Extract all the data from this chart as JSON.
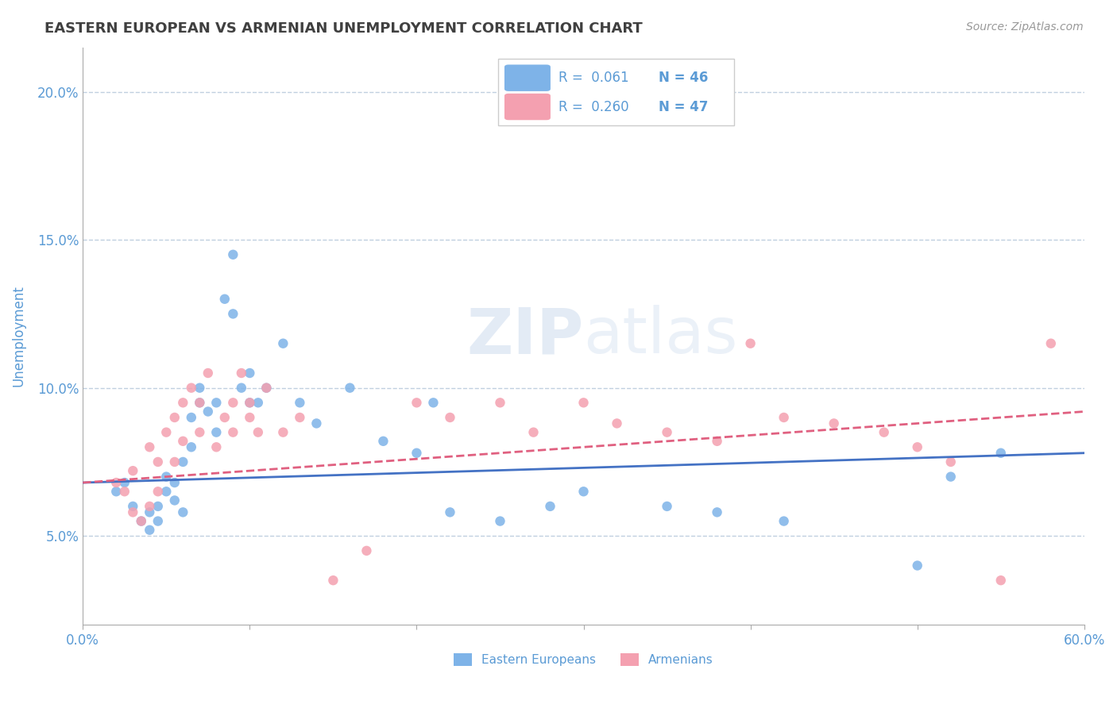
{
  "title": "EASTERN EUROPEAN VS ARMENIAN UNEMPLOYMENT CORRELATION CHART",
  "source_text": "Source: ZipAtlas.com",
  "xlabel": "",
  "ylabel": "Unemployment",
  "xlim": [
    0.0,
    0.6
  ],
  "ylim": [
    0.02,
    0.215
  ],
  "x_ticks": [
    0.0,
    0.1,
    0.2,
    0.3,
    0.4,
    0.5,
    0.6
  ],
  "x_tick_labels": [
    "0.0%",
    "",
    "",
    "",
    "",
    "",
    "60.0%"
  ],
  "y_ticks": [
    0.05,
    0.1,
    0.15,
    0.2
  ],
  "y_tick_labels": [
    "5.0%",
    "10.0%",
    "15.0%",
    "20.0%"
  ],
  "legend_r1": "R =  0.061",
  "legend_n1": "N = 46",
  "legend_r2": "R =  0.260",
  "legend_n2": "N = 47",
  "blue_color": "#7EB3E8",
  "pink_color": "#F4A0B0",
  "blue_line_color": "#4472C4",
  "pink_line_color": "#E06080",
  "title_color": "#404040",
  "axis_color": "#5B9BD5",
  "watermark_zip": "ZIP",
  "watermark_atlas": "atlas",
  "blue_scatter_x": [
    0.02,
    0.025,
    0.03,
    0.035,
    0.04,
    0.04,
    0.045,
    0.045,
    0.05,
    0.05,
    0.055,
    0.055,
    0.06,
    0.06,
    0.065,
    0.065,
    0.07,
    0.07,
    0.075,
    0.08,
    0.08,
    0.085,
    0.09,
    0.09,
    0.095,
    0.1,
    0.1,
    0.105,
    0.11,
    0.12,
    0.13,
    0.14,
    0.16,
    0.18,
    0.2,
    0.21,
    0.22,
    0.25,
    0.28,
    0.3,
    0.35,
    0.38,
    0.42,
    0.5,
    0.52,
    0.55
  ],
  "blue_scatter_y": [
    0.065,
    0.068,
    0.06,
    0.055,
    0.052,
    0.058,
    0.055,
    0.06,
    0.065,
    0.07,
    0.062,
    0.068,
    0.075,
    0.058,
    0.08,
    0.09,
    0.095,
    0.1,
    0.092,
    0.085,
    0.095,
    0.13,
    0.125,
    0.145,
    0.1,
    0.095,
    0.105,
    0.095,
    0.1,
    0.115,
    0.095,
    0.088,
    0.1,
    0.082,
    0.078,
    0.095,
    0.058,
    0.055,
    0.06,
    0.065,
    0.06,
    0.058,
    0.055,
    0.04,
    0.07,
    0.078
  ],
  "pink_scatter_x": [
    0.02,
    0.025,
    0.03,
    0.03,
    0.035,
    0.04,
    0.04,
    0.045,
    0.045,
    0.05,
    0.055,
    0.055,
    0.06,
    0.06,
    0.065,
    0.07,
    0.07,
    0.075,
    0.08,
    0.085,
    0.09,
    0.09,
    0.095,
    0.1,
    0.1,
    0.105,
    0.11,
    0.12,
    0.13,
    0.15,
    0.17,
    0.2,
    0.22,
    0.25,
    0.27,
    0.3,
    0.32,
    0.35,
    0.38,
    0.4,
    0.42,
    0.45,
    0.48,
    0.5,
    0.52,
    0.55,
    0.58
  ],
  "pink_scatter_y": [
    0.068,
    0.065,
    0.058,
    0.072,
    0.055,
    0.06,
    0.08,
    0.065,
    0.075,
    0.085,
    0.075,
    0.09,
    0.082,
    0.095,
    0.1,
    0.085,
    0.095,
    0.105,
    0.08,
    0.09,
    0.095,
    0.085,
    0.105,
    0.09,
    0.095,
    0.085,
    0.1,
    0.085,
    0.09,
    0.035,
    0.045,
    0.095,
    0.09,
    0.095,
    0.085,
    0.095,
    0.088,
    0.085,
    0.082,
    0.115,
    0.09,
    0.088,
    0.085,
    0.08,
    0.075,
    0.035,
    0.115
  ],
  "blue_line_x": [
    0.0,
    0.6
  ],
  "blue_line_y_start": 0.068,
  "blue_line_y_end": 0.078,
  "pink_line_x": [
    0.0,
    0.6
  ],
  "pink_line_y_start": 0.068,
  "pink_line_y_end": 0.092,
  "grid_color": "#C0D0E0",
  "background_color": "#FFFFFF",
  "bottom_legend_labels": [
    "Eastern Europeans",
    "Armenians"
  ]
}
